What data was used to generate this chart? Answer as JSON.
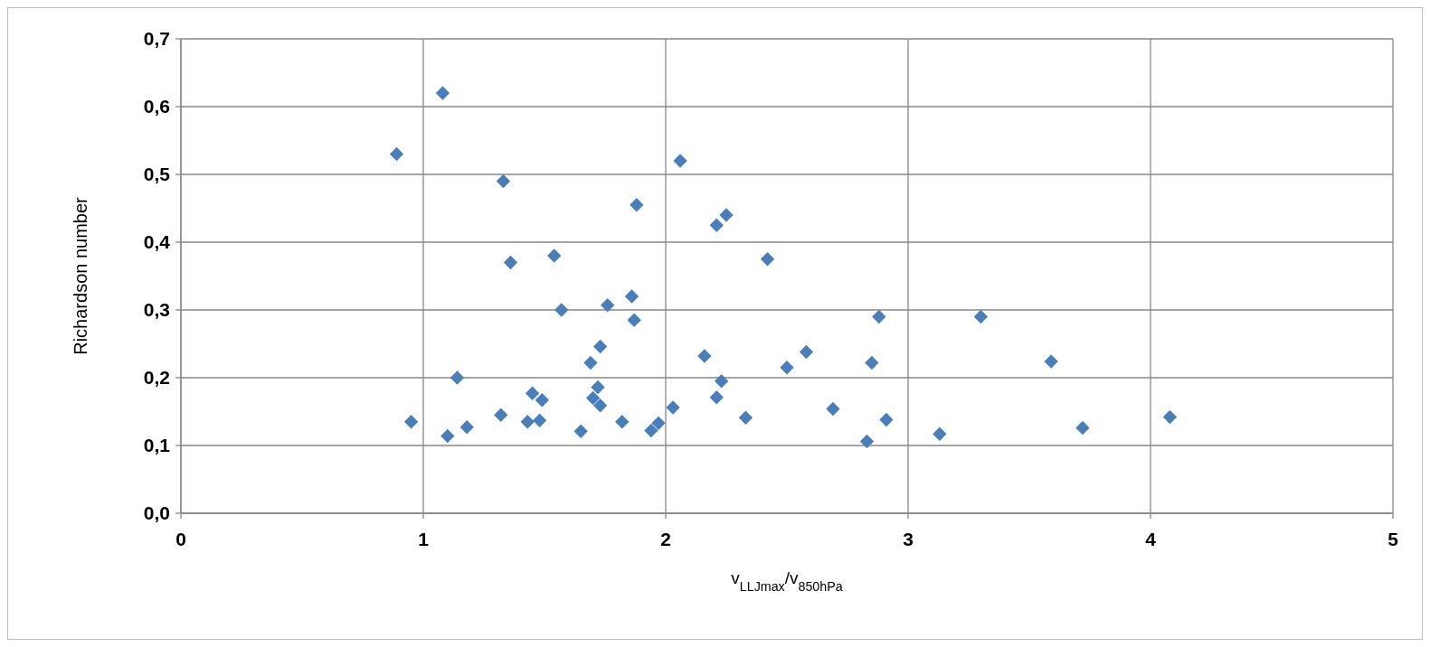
{
  "chart_data": {
    "type": "scatter",
    "xlabel": "v$_{LLJmax}$/v$_{850hPa}$",
    "ylabel": "Richardson number",
    "xlim": [
      0,
      5
    ],
    "xticks": [
      0,
      1,
      2,
      3,
      4,
      5
    ],
    "ylim": [
      0,
      0.7
    ],
    "yticks": [
      {
        "value": 0,
        "label": "0,0"
      },
      {
        "value": 0.1,
        "label": "0,1"
      },
      {
        "value": 0.2,
        "label": "0,2"
      },
      {
        "value": 0.3,
        "label": "0,3"
      },
      {
        "value": 0.4,
        "label": "0,4"
      },
      {
        "value": 0.5,
        "label": "0,5"
      },
      {
        "value": 0.6,
        "label": "0,6"
      },
      {
        "value": 0.7,
        "label": "0,7"
      }
    ],
    "grid": true,
    "marker": "diamond",
    "series": [
      {
        "color": "#4a7ebb",
        "x": [
          1.08,
          0.89,
          1.33,
          1.36,
          1.54,
          1.57,
          1.14,
          0.95,
          1.1,
          1.18,
          1.32,
          1.45,
          1.49,
          1.43,
          1.48,
          1.65,
          2.06,
          1.88,
          2.25,
          2.21,
          2.42,
          1.86,
          1.76,
          1.87,
          2.88,
          3.3,
          1.73,
          1.69,
          2.16,
          2.58,
          2.5,
          2.85,
          1.72,
          2.23,
          1.7,
          1.73,
          2.21,
          1.82,
          2.03,
          1.97,
          1.94,
          2.33,
          2.69,
          2.91,
          2.83,
          3.13,
          3.59,
          3.72,
          4.08
        ],
        "values": [
          0.62,
          0.53,
          0.49,
          0.37,
          0.38,
          0.3,
          0.2,
          0.135,
          0.114,
          0.127,
          0.145,
          0.177,
          0.167,
          0.135,
          0.137,
          0.121,
          0.52,
          0.455,
          0.44,
          0.425,
          0.375,
          0.32,
          0.307,
          0.285,
          0.29,
          0.29,
          0.246,
          0.222,
          0.232,
          0.238,
          0.215,
          0.222,
          0.186,
          0.195,
          0.17,
          0.159,
          0.171,
          0.135,
          0.156,
          0.133,
          0.122,
          0.141,
          0.154,
          0.138,
          0.106,
          0.117,
          0.224,
          0.126,
          0.142
        ]
      }
    ]
  }
}
